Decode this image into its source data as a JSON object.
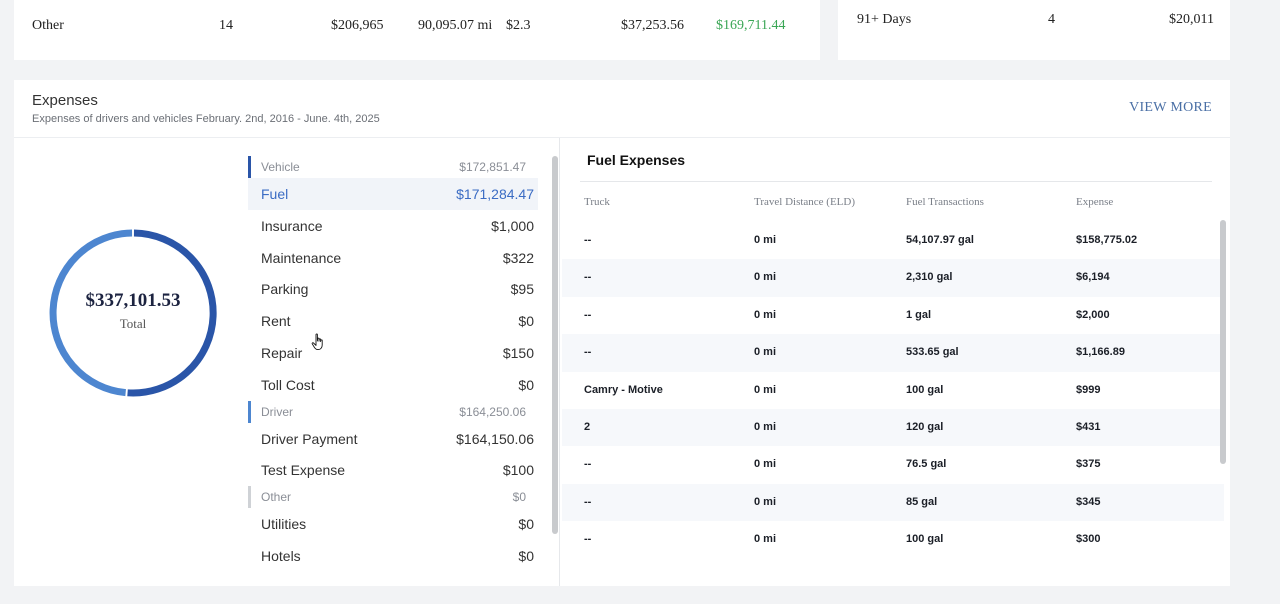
{
  "top_left_row": {
    "name": "Other",
    "count": "14",
    "amount": "$206,965",
    "distance": "90,095.07 mi",
    "rate": "$2.3",
    "cost": "$37,253.56",
    "profit": "$169,711.44"
  },
  "top_right_row": {
    "label": "91+ Days",
    "count": "4",
    "amount": "$20,011"
  },
  "expenses": {
    "title": "Expenses",
    "subtitle": "Expenses of drivers and vehicles February. 2nd, 2016 - June. 4th, 2025",
    "view_more": "VIEW MORE",
    "total": "$337,101.53",
    "total_label": "Total",
    "groups": [
      {
        "name": "Vehicle",
        "value": "$172,851.47",
        "color": "#2a55a8",
        "items": [
          {
            "name": "Fuel",
            "value": "$171,284.47"
          },
          {
            "name": "Insurance",
            "value": "$1,000"
          },
          {
            "name": "Maintenance",
            "value": "$322"
          },
          {
            "name": "Parking",
            "value": "$95"
          },
          {
            "name": "Rent",
            "value": "$0"
          },
          {
            "name": "Repair",
            "value": "$150"
          },
          {
            "name": "Toll Cost",
            "value": "$0"
          }
        ]
      },
      {
        "name": "Driver",
        "value": "$164,250.06",
        "color": "#4d86d0",
        "items": [
          {
            "name": "Driver Payment",
            "value": "$164,150.06"
          },
          {
            "name": "Test Expense",
            "value": "$100"
          }
        ]
      },
      {
        "name": "Other",
        "value": "$0",
        "color": "#cfd2d6",
        "items": [
          {
            "name": "Utilities",
            "value": "$0"
          },
          {
            "name": "Hotels",
            "value": "$0"
          }
        ]
      }
    ],
    "donut": {
      "vehicle_value": 172851.47,
      "driver_value": 164250.06,
      "vehicle_color": "#2a55a8",
      "driver_color": "#4d86d0"
    }
  },
  "fuel": {
    "title": "Fuel Expenses",
    "columns": [
      "Truck",
      "Travel Distance (ELD)",
      "Fuel Transactions",
      "Expense"
    ],
    "rows": [
      [
        "--",
        "0 mi",
        "54,107.97 gal",
        "$158,775.02"
      ],
      [
        "--",
        "0 mi",
        "2,310 gal",
        "$6,194"
      ],
      [
        "--",
        "0 mi",
        "1 gal",
        "$2,000"
      ],
      [
        "--",
        "0 mi",
        "533.65 gal",
        "$1,166.89"
      ],
      [
        "Camry - Motive",
        "0 mi",
        "100 gal",
        "$999"
      ],
      [
        "2",
        "0 mi",
        "120 gal",
        "$431"
      ],
      [
        "--",
        "0 mi",
        "76.5 gal",
        "$375"
      ],
      [
        "--",
        "0 mi",
        "85 gal",
        "$345"
      ],
      [
        "--",
        "0 mi",
        "100 gal",
        "$300"
      ]
    ]
  }
}
